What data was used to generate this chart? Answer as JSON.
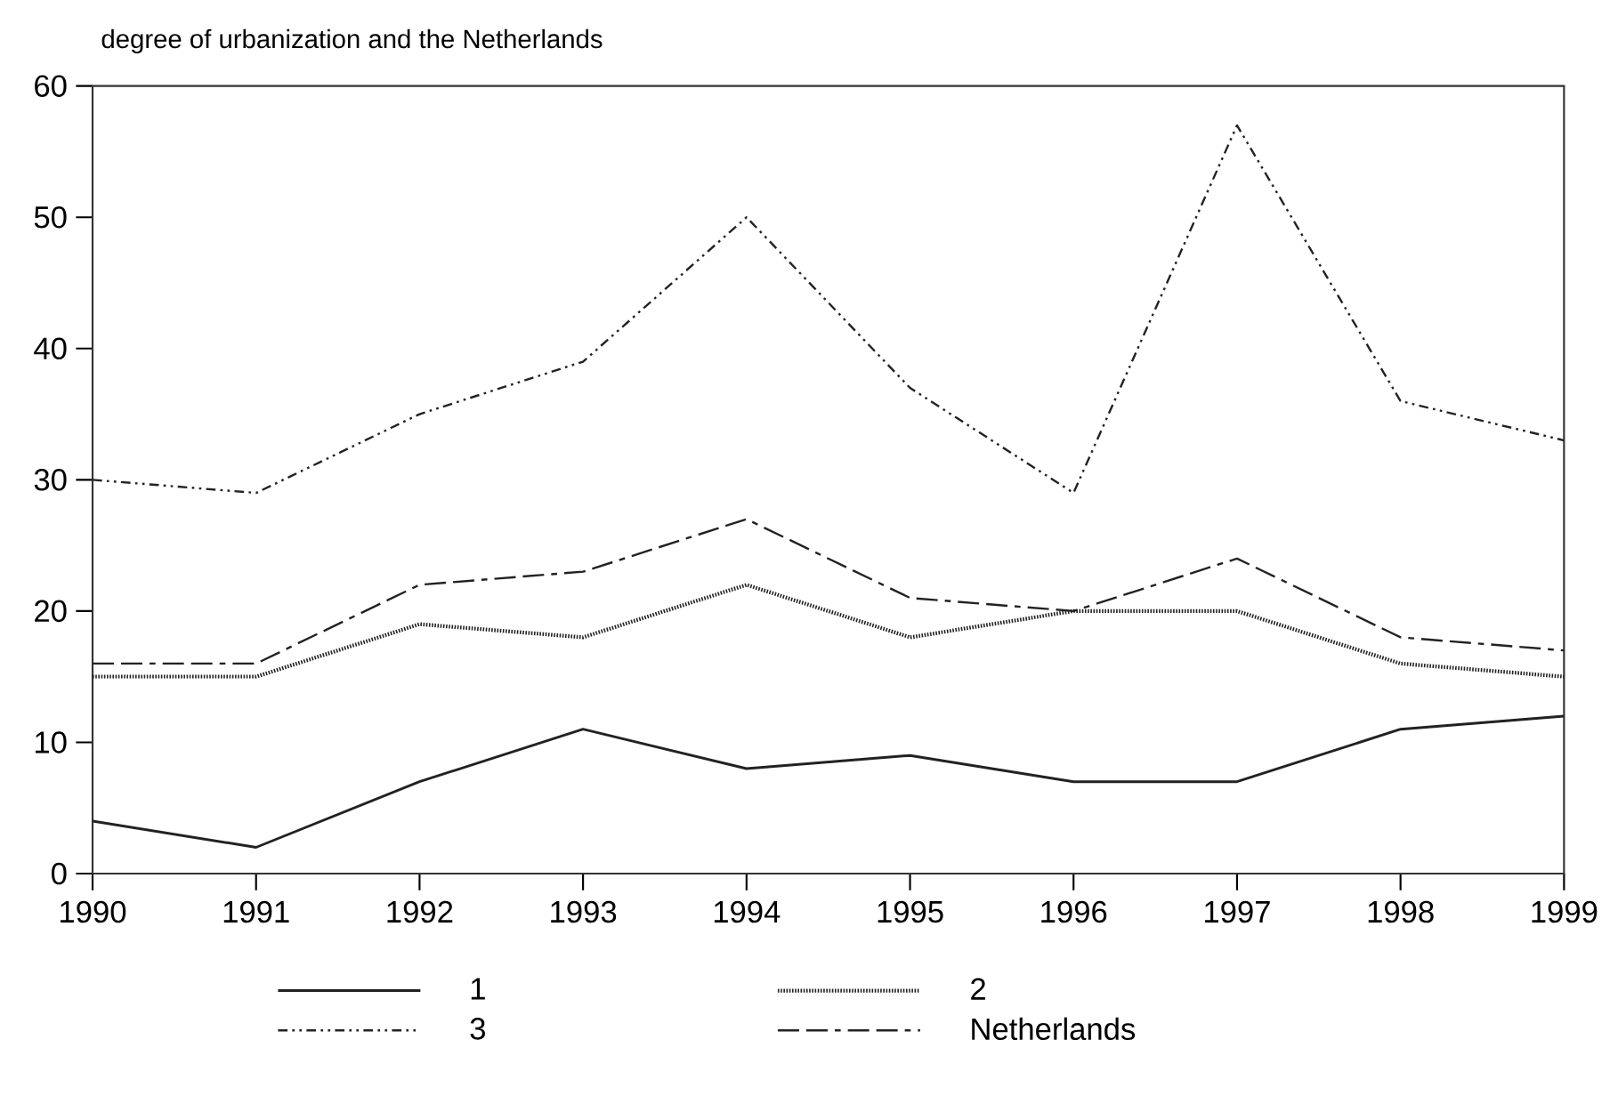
{
  "chart_data": {
    "type": "line",
    "title": "degree of urbanization and the Netherlands",
    "x": [
      1990,
      1991,
      1992,
      1993,
      1994,
      1995,
      1996,
      1997,
      1998,
      1999
    ],
    "xlim": [
      1990,
      1999
    ],
    "xticks": [
      1990,
      1991,
      1992,
      1993,
      1994,
      1995,
      1996,
      1997,
      1998,
      1999
    ],
    "ylim": [
      0,
      60
    ],
    "yticks": [
      0,
      10,
      20,
      30,
      40,
      50,
      60
    ],
    "grid": false,
    "legend": "bottom",
    "series": [
      {
        "name": "1",
        "color": "#222222",
        "line_style": "solid",
        "values": [
          4,
          2,
          7,
          11,
          8,
          9,
          7,
          7,
          11,
          12
        ]
      },
      {
        "name": "2",
        "color": "#222222",
        "line_style": "dotted",
        "values": [
          15,
          15,
          19,
          18,
          22,
          18,
          20,
          20,
          16,
          15
        ]
      },
      {
        "name": "3",
        "color": "#222222",
        "line_style": "dashed",
        "values": [
          30,
          29,
          35,
          39,
          50,
          37,
          29,
          57,
          36,
          33
        ]
      },
      {
        "name": "Netherlands",
        "color": "#222222",
        "line_style": "dashed",
        "values": [
          16,
          16,
          22,
          23,
          27,
          21,
          20,
          24,
          18,
          17
        ]
      }
    ]
  }
}
